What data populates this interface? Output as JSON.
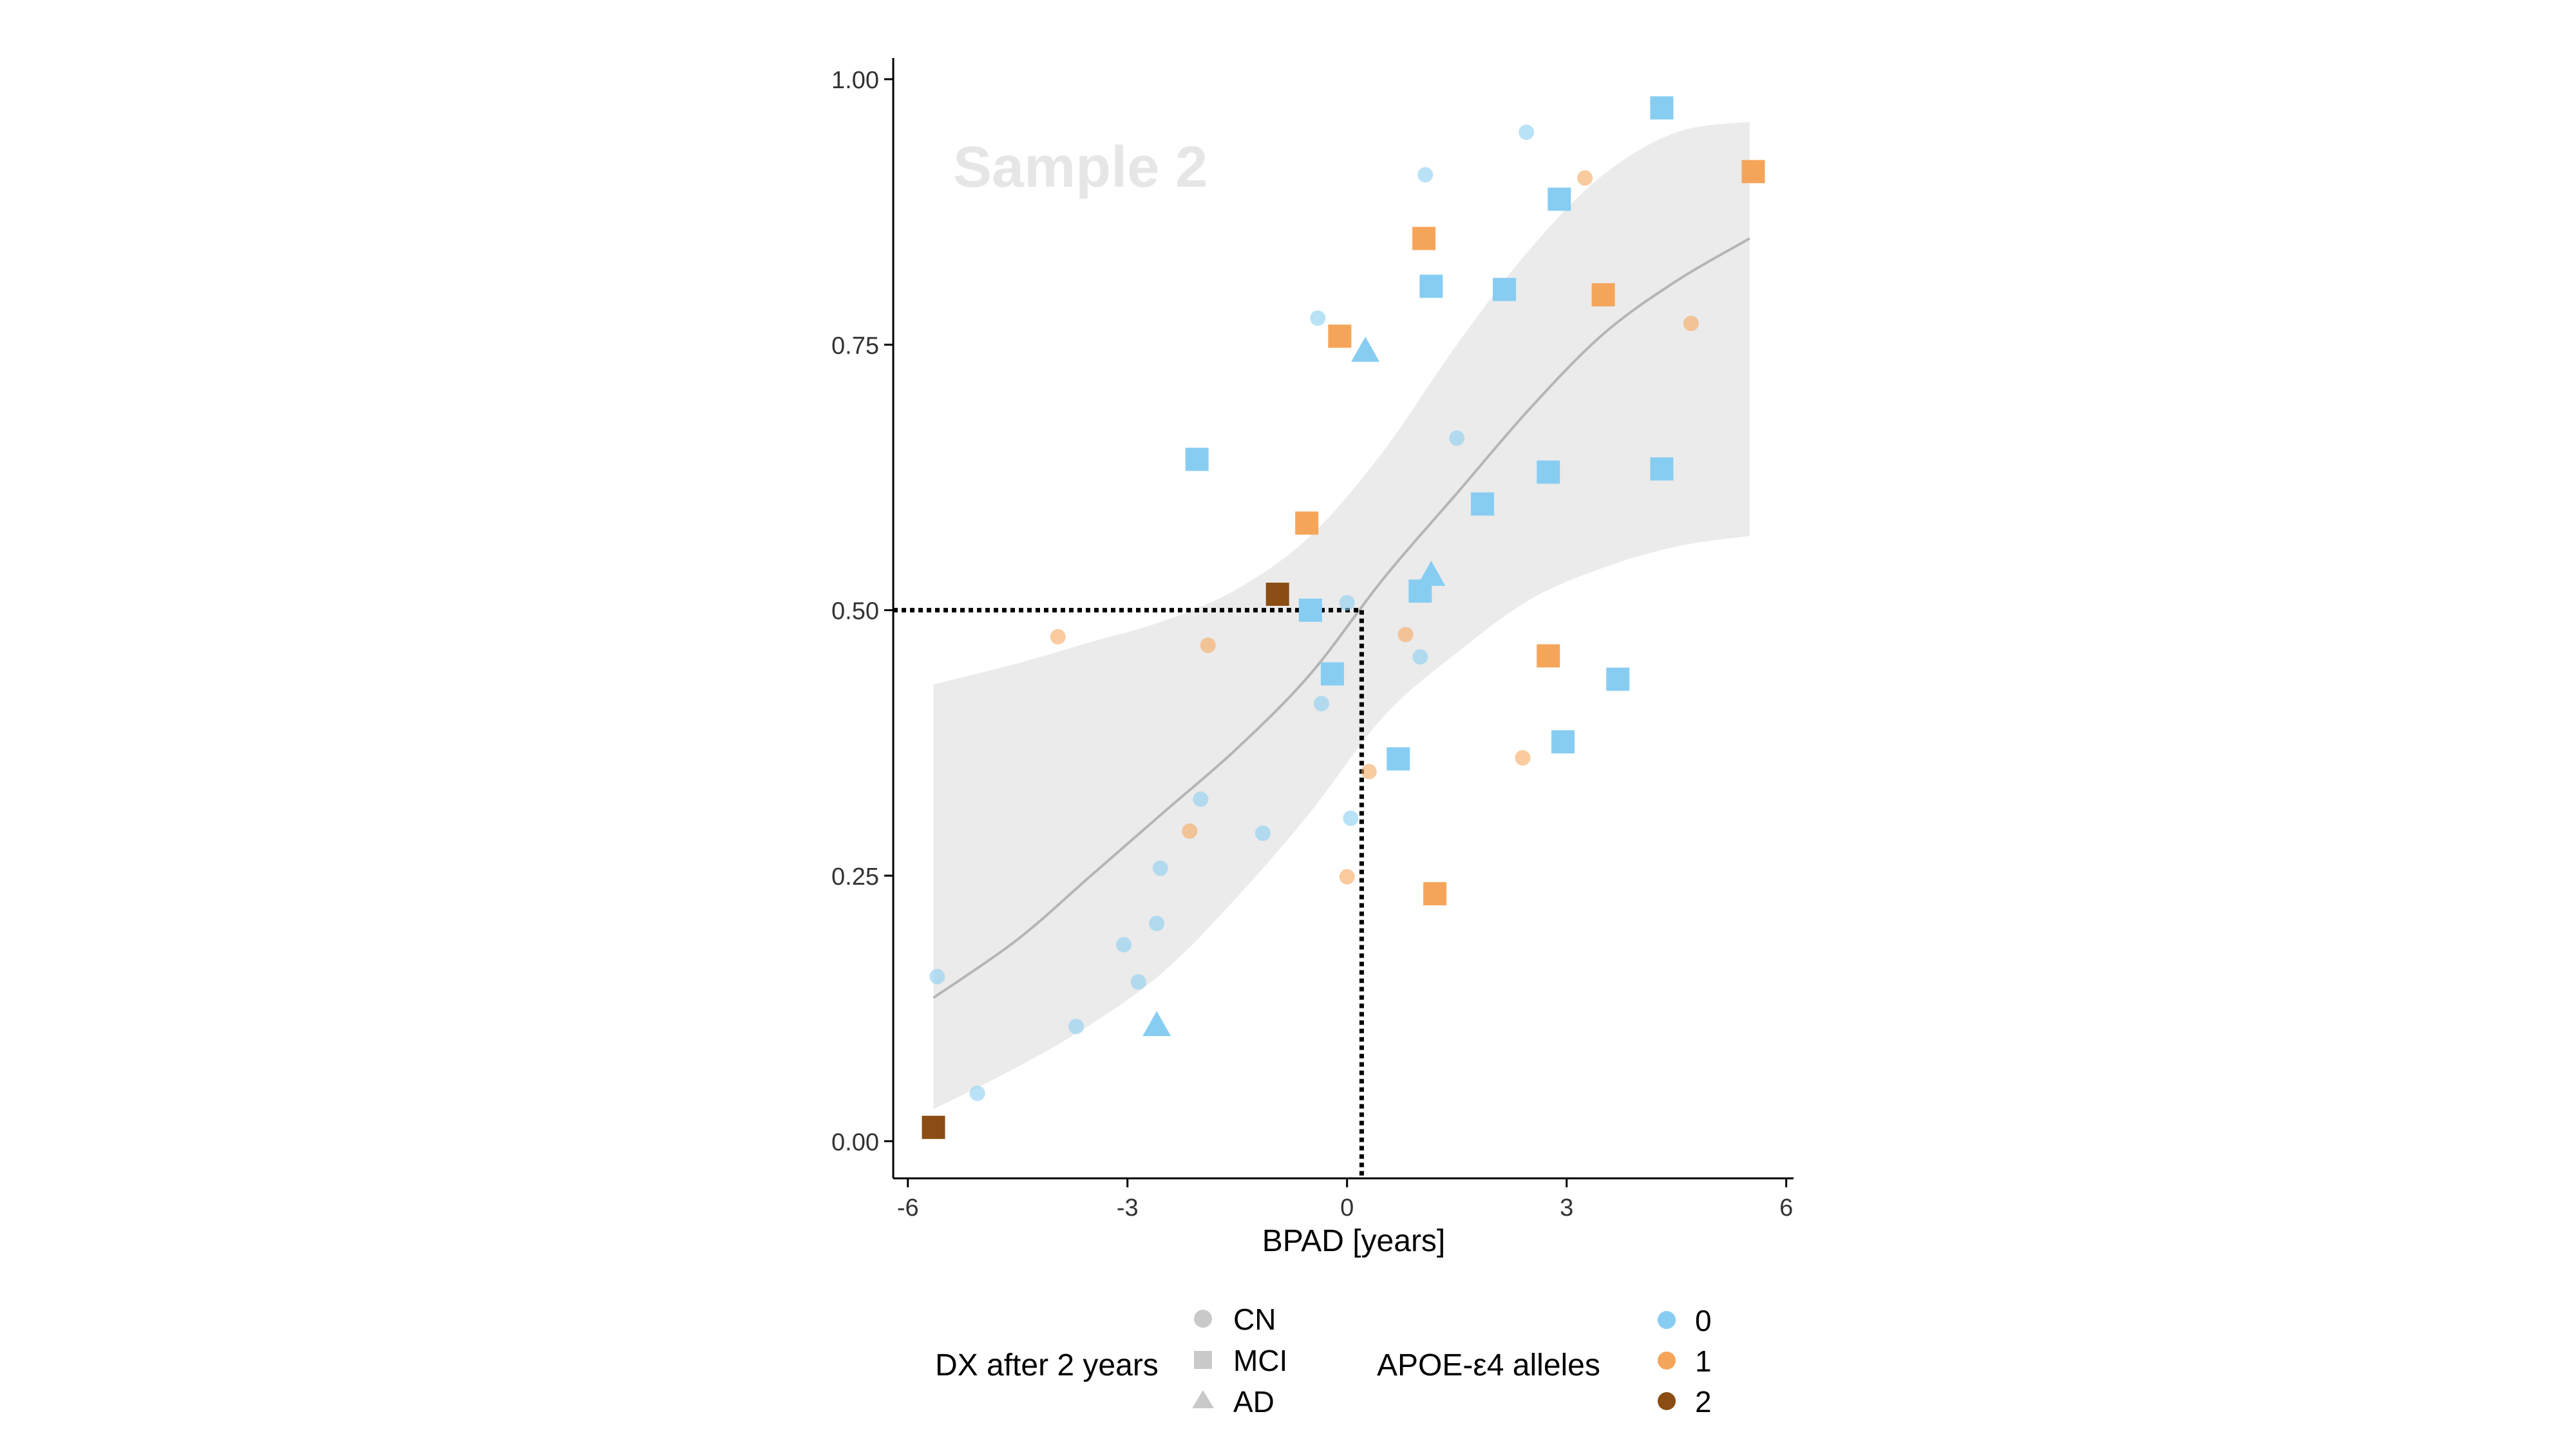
{
  "chart_data": {
    "type": "scatter",
    "title": "",
    "watermark": "Sample 2",
    "xlabel": "BPAD [years]",
    "ylabel": "",
    "xlim": [
      -6.2,
      6.1
    ],
    "ylim": [
      -0.035,
      1.02
    ],
    "xticks": [
      -6,
      -3,
      0,
      3,
      6
    ],
    "xtick_labels": [
      "-6",
      "-3",
      "0",
      "3",
      "6"
    ],
    "yticks": [
      0,
      0.25,
      0.5,
      0.75,
      1.0
    ],
    "ytick_labels": [
      "0.00",
      "0.25",
      "0.50",
      "0.75",
      "1.00"
    ],
    "grid": false,
    "colors": {
      "0": "#87cdf2",
      "1": "#f5a55a",
      "2": "#8b4d14",
      "band": "#ebebeb",
      "curve": "#b5b5b5",
      "legend_shape": "#c9c9c9"
    },
    "legend_dx": {
      "title": "DX after 2 years",
      "items": [
        "CN",
        "MCI",
        "AD"
      ]
    },
    "legend_apoe": {
      "title": "APOE-ε4 alleles",
      "items": [
        "0",
        "1",
        "2"
      ]
    },
    "reference_point": {
      "x": 0.2,
      "y": 0.5
    },
    "fit_curve": {
      "x": [
        -5.65,
        -4.5,
        -3.5,
        -2.5,
        -1.5,
        -0.5,
        0.5,
        1.5,
        2.5,
        3.5,
        4.5,
        5.5
      ],
      "y": [
        0.135,
        0.19,
        0.25,
        0.31,
        0.37,
        0.44,
        0.53,
        0.61,
        0.69,
        0.76,
        0.81,
        0.85
      ],
      "lower": [
        0.03,
        0.07,
        0.11,
        0.16,
        0.23,
        0.31,
        0.4,
        0.46,
        0.51,
        0.54,
        0.56,
        0.57
      ],
      "upper": [
        0.43,
        0.45,
        0.47,
        0.49,
        0.52,
        0.57,
        0.65,
        0.75,
        0.84,
        0.91,
        0.95,
        0.96
      ]
    },
    "points": [
      {
        "x": -5.6,
        "y": 0.155,
        "dx": "CN",
        "apoe": 0
      },
      {
        "x": -5.05,
        "y": 0.045,
        "dx": "CN",
        "apoe": 0
      },
      {
        "x": -3.7,
        "y": 0.108,
        "dx": "CN",
        "apoe": 0
      },
      {
        "x": -3.05,
        "y": 0.185,
        "dx": "CN",
        "apoe": 0
      },
      {
        "x": -2.85,
        "y": 0.15,
        "dx": "CN",
        "apoe": 0
      },
      {
        "x": -2.6,
        "y": 0.205,
        "dx": "CN",
        "apoe": 0
      },
      {
        "x": -2.55,
        "y": 0.257,
        "dx": "CN",
        "apoe": 0
      },
      {
        "x": -2.0,
        "y": 0.322,
        "dx": "CN",
        "apoe": 0
      },
      {
        "x": -1.15,
        "y": 0.29,
        "dx": "CN",
        "apoe": 0
      },
      {
        "x": -0.4,
        "y": 0.775,
        "dx": "CN",
        "apoe": 0
      },
      {
        "x": -0.35,
        "y": 0.412,
        "dx": "CN",
        "apoe": 0
      },
      {
        "x": 0.0,
        "y": 0.507,
        "dx": "CN",
        "apoe": 0
      },
      {
        "x": 0.05,
        "y": 0.304,
        "dx": "CN",
        "apoe": 0
      },
      {
        "x": 1.0,
        "y": 0.456,
        "dx": "CN",
        "apoe": 0
      },
      {
        "x": 1.07,
        "y": 0.91,
        "dx": "CN",
        "apoe": 0
      },
      {
        "x": 1.5,
        "y": 0.662,
        "dx": "CN",
        "apoe": 0
      },
      {
        "x": 2.45,
        "y": 0.95,
        "dx": "CN",
        "apoe": 0
      },
      {
        "x": -3.95,
        "y": 0.475,
        "dx": "CN",
        "apoe": 1
      },
      {
        "x": -2.15,
        "y": 0.292,
        "dx": "CN",
        "apoe": 1
      },
      {
        "x": -1.9,
        "y": 0.467,
        "dx": "CN",
        "apoe": 1
      },
      {
        "x": 0.0,
        "y": 0.249,
        "dx": "CN",
        "apoe": 1
      },
      {
        "x": 0.3,
        "y": 0.348,
        "dx": "CN",
        "apoe": 1
      },
      {
        "x": 0.8,
        "y": 0.477,
        "dx": "CN",
        "apoe": 1
      },
      {
        "x": 2.4,
        "y": 0.361,
        "dx": "CN",
        "apoe": 1
      },
      {
        "x": 3.25,
        "y": 0.907,
        "dx": "CN",
        "apoe": 1
      },
      {
        "x": 4.7,
        "y": 0.77,
        "dx": "CN",
        "apoe": 1
      },
      {
        "x": -2.05,
        "y": 0.642,
        "dx": "MCI",
        "apoe": 0
      },
      {
        "x": -0.5,
        "y": 0.5,
        "dx": "MCI",
        "apoe": 0
      },
      {
        "x": -0.2,
        "y": 0.44,
        "dx": "MCI",
        "apoe": 0
      },
      {
        "x": 0.7,
        "y": 0.36,
        "dx": "MCI",
        "apoe": 0
      },
      {
        "x": 1.0,
        "y": 0.518,
        "dx": "MCI",
        "apoe": 0
      },
      {
        "x": 1.15,
        "y": 0.805,
        "dx": "MCI",
        "apoe": 0
      },
      {
        "x": 1.85,
        "y": 0.6,
        "dx": "MCI",
        "apoe": 0
      },
      {
        "x": 2.15,
        "y": 0.802,
        "dx": "MCI",
        "apoe": 0
      },
      {
        "x": 2.75,
        "y": 0.63,
        "dx": "MCI",
        "apoe": 0
      },
      {
        "x": 2.9,
        "y": 0.887,
        "dx": "MCI",
        "apoe": 0
      },
      {
        "x": 2.95,
        "y": 0.376,
        "dx": "MCI",
        "apoe": 0
      },
      {
        "x": 3.7,
        "y": 0.435,
        "dx": "MCI",
        "apoe": 0
      },
      {
        "x": 4.3,
        "y": 0.633,
        "dx": "MCI",
        "apoe": 0
      },
      {
        "x": 4.3,
        "y": 0.973,
        "dx": "MCI",
        "apoe": 0
      },
      {
        "x": -0.55,
        "y": 0.582,
        "dx": "MCI",
        "apoe": 1
      },
      {
        "x": -0.1,
        "y": 0.758,
        "dx": "MCI",
        "apoe": 1
      },
      {
        "x": 1.05,
        "y": 0.85,
        "dx": "MCI",
        "apoe": 1
      },
      {
        "x": 1.2,
        "y": 0.233,
        "dx": "MCI",
        "apoe": 1
      },
      {
        "x": 2.75,
        "y": 0.457,
        "dx": "MCI",
        "apoe": 1
      },
      {
        "x": 3.5,
        "y": 0.797,
        "dx": "MCI",
        "apoe": 1
      },
      {
        "x": 5.55,
        "y": 0.913,
        "dx": "MCI",
        "apoe": 1
      },
      {
        "x": -5.65,
        "y": 0.013,
        "dx": "MCI",
        "apoe": 2
      },
      {
        "x": -0.95,
        "y": 0.515,
        "dx": "MCI",
        "apoe": 2
      },
      {
        "x": -2.6,
        "y": 0.108,
        "dx": "AD",
        "apoe": 0
      },
      {
        "x": 0.25,
        "y": 0.743,
        "dx": "AD",
        "apoe": 0
      },
      {
        "x": 1.15,
        "y": 0.532,
        "dx": "AD",
        "apoe": 0
      }
    ]
  }
}
